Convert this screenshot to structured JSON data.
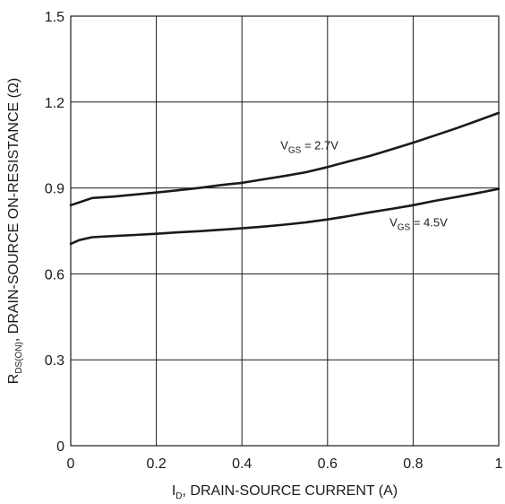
{
  "chart_data": {
    "type": "line",
    "title": "",
    "xlabel": {
      "main": "I",
      "sub": "D",
      "rest": ", DRAIN-SOURCE CURRENT (A)"
    },
    "ylabel": {
      "main": "R",
      "sub": "DS(ON)",
      "rest": ", DRAIN-SOURCE ON-RESISTANCE (Ω)"
    },
    "xlim": [
      0,
      1
    ],
    "ylim": [
      0,
      1.5
    ],
    "xticks": [
      0,
      0.2,
      0.4,
      0.6,
      0.8,
      1
    ],
    "xtick_labels": [
      "0",
      "0.2",
      "0.4",
      "0.6",
      "0.8",
      "1"
    ],
    "yticks": [
      0,
      0.3,
      0.6,
      0.9,
      1.2,
      1.5
    ],
    "ytick_labels": [
      "0",
      "0.3",
      "0.6",
      "0.9",
      "1.2",
      "1.5"
    ],
    "grid": true,
    "line_color": "#1a1a1a",
    "series": [
      {
        "name": "VGS = 2.7V",
        "label": {
          "main": "V",
          "sub": "GS",
          "rest": " = 2.7V",
          "x": 0.49,
          "y": 1.035
        },
        "x": [
          0.0,
          0.02,
          0.05,
          0.1,
          0.15,
          0.2,
          0.25,
          0.3,
          0.35,
          0.4,
          0.45,
          0.5,
          0.55,
          0.6,
          0.65,
          0.7,
          0.75,
          0.8,
          0.85,
          0.9,
          0.95,
          1.0
        ],
        "y": [
          0.84,
          0.85,
          0.865,
          0.87,
          0.877,
          0.884,
          0.892,
          0.9,
          0.91,
          0.918,
          0.93,
          0.942,
          0.955,
          0.973,
          0.993,
          1.012,
          1.035,
          1.058,
          1.083,
          1.108,
          1.135,
          1.162
        ]
      },
      {
        "name": "VGS = 4.5V",
        "label": {
          "main": "V",
          "sub": "GS",
          "rest": " = 4.5V",
          "x": 0.745,
          "y": 0.765
        },
        "x": [
          0.0,
          0.02,
          0.05,
          0.1,
          0.15,
          0.2,
          0.25,
          0.3,
          0.35,
          0.4,
          0.45,
          0.5,
          0.55,
          0.6,
          0.65,
          0.7,
          0.75,
          0.8,
          0.85,
          0.9,
          0.95,
          1.0
        ],
        "y": [
          0.705,
          0.718,
          0.728,
          0.732,
          0.736,
          0.74,
          0.745,
          0.749,
          0.754,
          0.759,
          0.765,
          0.772,
          0.78,
          0.79,
          0.802,
          0.815,
          0.827,
          0.84,
          0.855,
          0.868,
          0.882,
          0.897
        ]
      }
    ]
  }
}
